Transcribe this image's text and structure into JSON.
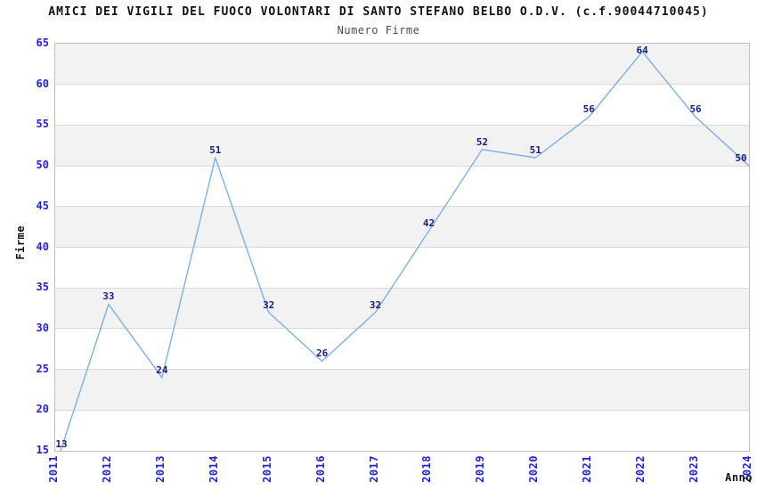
{
  "title": "AMICI DEI VIGILI DEL FUOCO VOLONTARI DI SANTO STEFANO BELBO O.D.V. (c.f.90044710045)",
  "subtitle": "Numero Firme",
  "axes": {
    "x_label": "Anno",
    "y_label": "Firme"
  },
  "chart_data": {
    "type": "line",
    "title": "AMICI DEI VIGILI DEL FUOCO VOLONTARI DI SANTO STEFANO BELBO O.D.V. (c.f.90044710045)",
    "subtitle": "Numero Firme",
    "xlabel": "Anno",
    "ylabel": "Firme",
    "categories": [
      "2011",
      "2012",
      "2013",
      "2014",
      "2015",
      "2016",
      "2017",
      "2018",
      "2019",
      "2020",
      "2021",
      "2022",
      "2023",
      "2024"
    ],
    "values": [
      13,
      33,
      24,
      51,
      32,
      26,
      32,
      42,
      52,
      51,
      56,
      64,
      56,
      50
    ],
    "point_labels": [
      "13",
      "33",
      "24",
      "51",
      "32",
      "26",
      "32",
      "42",
      "52",
      "51",
      "56",
      "64",
      "56",
      "50"
    ],
    "ylim": [
      15,
      65
    ],
    "y_ticks": [
      15,
      20,
      25,
      30,
      35,
      40,
      45,
      50,
      55,
      60,
      65
    ],
    "grid": "horizontal gridlines with alternating shaded bands",
    "legend_position": "none"
  },
  "colors": {
    "background": "#ffffff",
    "line": "#7cb0e8",
    "band_shaded": "#f2f2f2",
    "band_plain": "#ffffff",
    "gridline": "#d9d9d9",
    "plot_border": "#c0c0c0",
    "axis_tick_label": "#2222dd",
    "point_label": "#1a1a80",
    "title": "#111111",
    "subtitle": "#4d4d4d"
  }
}
